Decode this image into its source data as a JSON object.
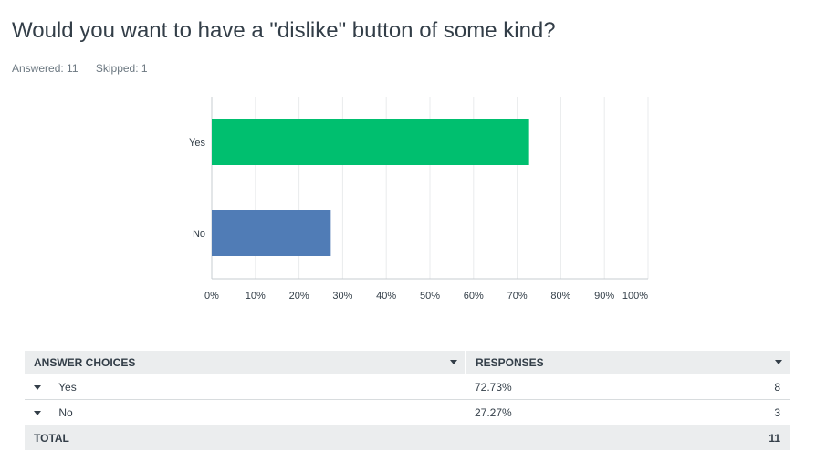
{
  "question": {
    "title": "Would you want to have a \"dislike\" button of some kind?",
    "answered_label": "Answered: 11",
    "skipped_label": "Skipped: 1"
  },
  "chart_data": {
    "type": "bar",
    "orientation": "horizontal",
    "categories": [
      "Yes",
      "No"
    ],
    "values": [
      72.73,
      27.27
    ],
    "colors": [
      "#00bf6f",
      "#507cb6"
    ],
    "xticks": [
      "0%",
      "10%",
      "20%",
      "30%",
      "40%",
      "50%",
      "60%",
      "70%",
      "80%",
      "90%",
      "100%"
    ],
    "xlim": [
      0,
      100
    ],
    "grid": true
  },
  "table": {
    "headers": {
      "choices": "ANSWER CHOICES",
      "responses": "RESPONSES"
    },
    "rows": [
      {
        "choice": "Yes",
        "percent": "72.73%",
        "count": "8"
      },
      {
        "choice": "No",
        "percent": "27.27%",
        "count": "3"
      }
    ],
    "total": {
      "label": "TOTAL",
      "count": "11"
    }
  }
}
